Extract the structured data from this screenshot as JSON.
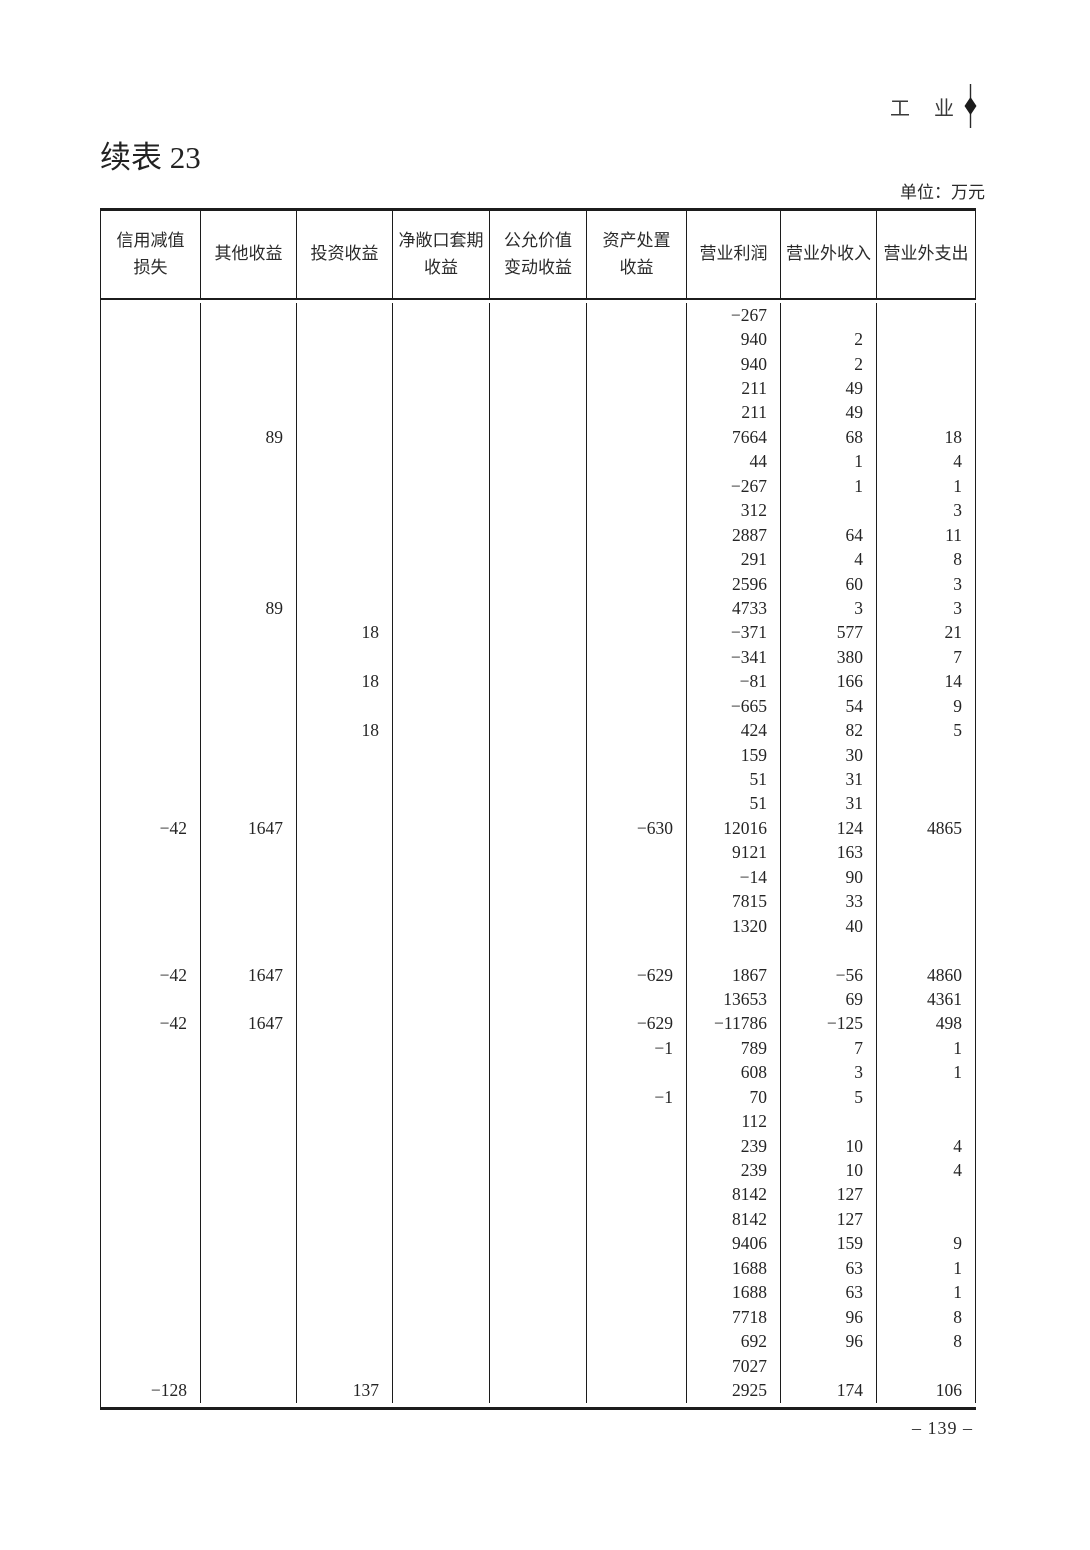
{
  "page": {
    "corner_label": "工　业",
    "corner_icon": "diamond-marker",
    "title": "续表 23",
    "unit_label": "单位：万元",
    "page_number": "– 139 –"
  },
  "table": {
    "columns": [
      "信用减值\n损失",
      "其他收益",
      "投资收益",
      "净敞口套期\n收益",
      "公允价值\n变动收益",
      "资产处置\n收益",
      "营业利润",
      "营业外收入",
      "营业外支出"
    ],
    "rows": [
      [
        "",
        "",
        "",
        "",
        "",
        "",
        "−267",
        "",
        ""
      ],
      [
        "",
        "",
        "",
        "",
        "",
        "",
        "940",
        "2",
        ""
      ],
      [
        "",
        "",
        "",
        "",
        "",
        "",
        "940",
        "2",
        ""
      ],
      [
        "",
        "",
        "",
        "",
        "",
        "",
        "211",
        "49",
        ""
      ],
      [
        "",
        "",
        "",
        "",
        "",
        "",
        "211",
        "49",
        ""
      ],
      [
        "",
        "89",
        "",
        "",
        "",
        "",
        "7664",
        "68",
        "18"
      ],
      [
        "",
        "",
        "",
        "",
        "",
        "",
        "44",
        "1",
        "4"
      ],
      [
        "",
        "",
        "",
        "",
        "",
        "",
        "−267",
        "1",
        "1"
      ],
      [
        "",
        "",
        "",
        "",
        "",
        "",
        "312",
        "",
        "3"
      ],
      [
        "",
        "",
        "",
        "",
        "",
        "",
        "2887",
        "64",
        "11"
      ],
      [
        "",
        "",
        "",
        "",
        "",
        "",
        "291",
        "4",
        "8"
      ],
      [
        "",
        "",
        "",
        "",
        "",
        "",
        "2596",
        "60",
        "3"
      ],
      [
        "",
        "89",
        "",
        "",
        "",
        "",
        "4733",
        "3",
        "3"
      ],
      [
        "",
        "",
        "18",
        "",
        "",
        "",
        "−371",
        "577",
        "21"
      ],
      [
        "",
        "",
        "",
        "",
        "",
        "",
        "−341",
        "380",
        "7"
      ],
      [
        "",
        "",
        "18",
        "",
        "",
        "",
        "−81",
        "166",
        "14"
      ],
      [
        "",
        "",
        "",
        "",
        "",
        "",
        "−665",
        "54",
        "9"
      ],
      [
        "",
        "",
        "18",
        "",
        "",
        "",
        "424",
        "82",
        "5"
      ],
      [
        "",
        "",
        "",
        "",
        "",
        "",
        "159",
        "30",
        ""
      ],
      [
        "",
        "",
        "",
        "",
        "",
        "",
        "51",
        "31",
        ""
      ],
      [
        "",
        "",
        "",
        "",
        "",
        "",
        "51",
        "31",
        ""
      ],
      [
        "−42",
        "1647",
        "",
        "",
        "",
        "−630",
        "12016",
        "124",
        "4865"
      ],
      [
        "",
        "",
        "",
        "",
        "",
        "",
        "9121",
        "163",
        ""
      ],
      [
        "",
        "",
        "",
        "",
        "",
        "",
        "−14",
        "90",
        ""
      ],
      [
        "",
        "",
        "",
        "",
        "",
        "",
        "7815",
        "33",
        ""
      ],
      [
        "",
        "",
        "",
        "",
        "",
        "",
        "1320",
        "40",
        ""
      ],
      [
        "",
        "",
        "",
        "",
        "",
        "",
        "",
        "",
        ""
      ],
      [
        "−42",
        "1647",
        "",
        "",
        "",
        "−629",
        "1867",
        "−56",
        "4860"
      ],
      [
        "",
        "",
        "",
        "",
        "",
        "",
        "13653",
        "69",
        "4361"
      ],
      [
        "−42",
        "1647",
        "",
        "",
        "",
        "−629",
        "−11786",
        "−125",
        "498"
      ],
      [
        "",
        "",
        "",
        "",
        "",
        "−1",
        "789",
        "7",
        "1"
      ],
      [
        "",
        "",
        "",
        "",
        "",
        "",
        "608",
        "3",
        "1"
      ],
      [
        "",
        "",
        "",
        "",
        "",
        "−1",
        "70",
        "5",
        ""
      ],
      [
        "",
        "",
        "",
        "",
        "",
        "",
        "112",
        "",
        ""
      ],
      [
        "",
        "",
        "",
        "",
        "",
        "",
        "239",
        "10",
        "4"
      ],
      [
        "",
        "",
        "",
        "",
        "",
        "",
        "239",
        "10",
        "4"
      ],
      [
        "",
        "",
        "",
        "",
        "",
        "",
        "8142",
        "127",
        ""
      ],
      [
        "",
        "",
        "",
        "",
        "",
        "",
        "8142",
        "127",
        ""
      ],
      [
        "",
        "",
        "",
        "",
        "",
        "",
        "9406",
        "159",
        "9"
      ],
      [
        "",
        "",
        "",
        "",
        "",
        "",
        "1688",
        "63",
        "1"
      ],
      [
        "",
        "",
        "",
        "",
        "",
        "",
        "1688",
        "63",
        "1"
      ],
      [
        "",
        "",
        "",
        "",
        "",
        "",
        "7718",
        "96",
        "8"
      ],
      [
        "",
        "",
        "",
        "",
        "",
        "",
        "692",
        "96",
        "8"
      ],
      [
        "",
        "",
        "",
        "",
        "",
        "",
        "7027",
        "",
        ""
      ],
      [
        "−128",
        "",
        "137",
        "",
        "",
        "",
        "2925",
        "174",
        "106"
      ]
    ]
  }
}
